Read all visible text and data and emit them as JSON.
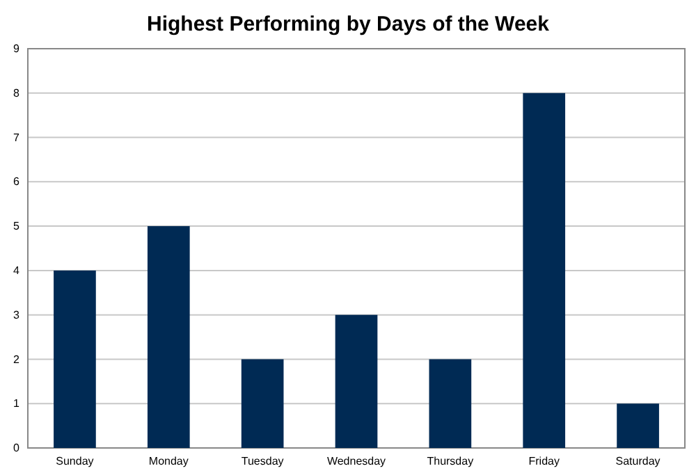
{
  "chart_data": {
    "type": "bar",
    "title": "Highest Performing by Days of the Week",
    "categories": [
      "Sunday",
      "Monday",
      "Tuesday",
      "Wednesday",
      "Thursday",
      "Friday",
      "Saturday"
    ],
    "values": [
      4,
      5,
      2,
      3,
      2,
      8,
      1
    ],
    "color": "#002a54",
    "ylim": [
      0,
      9
    ],
    "yticks": [
      0,
      1,
      2,
      3,
      4,
      5,
      6,
      7,
      8,
      9
    ],
    "grid": "y"
  }
}
